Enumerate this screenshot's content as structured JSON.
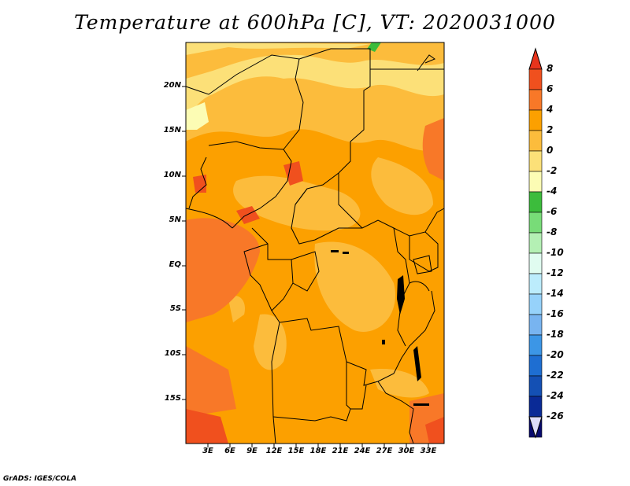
{
  "title": "Temperature at 600hPa [C], VT: 2020031000",
  "credit": "GrADS: IGES/COLA",
  "map": {
    "lat_labels": [
      "20N",
      "15N",
      "10N",
      "5N",
      "EQ",
      "5S",
      "10S",
      "15S"
    ],
    "lon_labels": [
      "3E",
      "6E",
      "9E",
      "12E",
      "15E",
      "18E",
      "21E",
      "24E",
      "27E",
      "30E",
      "33E"
    ],
    "region": "Central Africa",
    "dominant_color": "#fca000"
  },
  "colorbar": {
    "labels": [
      "8",
      "6",
      "4",
      "2",
      "0",
      "-2",
      "-4",
      "-6",
      "-8",
      "-10",
      "-12",
      "-14",
      "-16",
      "-18",
      "-20",
      "-22",
      "-24",
      "-26"
    ],
    "colors": [
      "#e8341c",
      "#f0501e",
      "#f87828",
      "#fca000",
      "#fcbc3c",
      "#fce078",
      "#fcfcb4",
      "#3cbc3c",
      "#78dc78",
      "#b4f0b4",
      "#e0fcf0",
      "#bcecfc",
      "#96d2fa",
      "#78b4f0",
      "#3c96e6",
      "#1e6ed2",
      "#1450b4",
      "#0a2a96",
      "#080a6e",
      "#dcdcf8"
    ]
  }
}
